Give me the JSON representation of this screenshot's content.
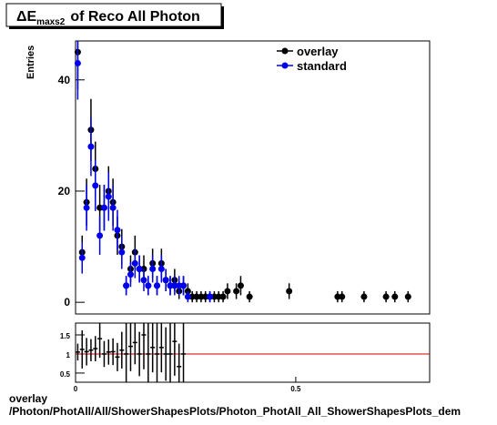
{
  "chart_data": [
    {
      "type": "scatter",
      "title": "ΔE",
      "title_subscript": "maxs2",
      "title_rest": "of Reco All Photon",
      "ylabel": "Entries",
      "xlim": [
        0,
        0.804
      ],
      "ylim": [
        -2.1,
        47
      ],
      "yticks": [
        0,
        20,
        40
      ],
      "legend": "upper right",
      "series": [
        {
          "name": "overlay",
          "color": "#000000",
          "x": [
            0.005,
            0.015,
            0.025,
            0.035,
            0.045,
            0.055,
            0.065,
            0.075,
            0.085,
            0.095,
            0.105,
            0.115,
            0.125,
            0.135,
            0.145,
            0.155,
            0.165,
            0.175,
            0.185,
            0.195,
            0.205,
            0.215,
            0.225,
            0.235,
            0.245,
            0.255,
            0.265,
            0.275,
            0.285,
            0.295,
            0.305,
            0.315,
            0.325,
            0.335,
            0.345,
            0.365,
            0.375,
            0.395,
            0.485,
            0.595,
            0.605,
            0.655,
            0.705,
            0.725,
            0.755
          ],
          "values": [
            45,
            9,
            18,
            31,
            24,
            17,
            17,
            20,
            18,
            12,
            10,
            3,
            6,
            9,
            6,
            6,
            3,
            7,
            3,
            7,
            4,
            3,
            4,
            2,
            3,
            2,
            1,
            1,
            1,
            1,
            1,
            1,
            1,
            1,
            2,
            2,
            3,
            1,
            2,
            1,
            1,
            1,
            1,
            1,
            1
          ]
        },
        {
          "name": "standard",
          "color": "#0000ee",
          "x": [
            0.005,
            0.015,
            0.025,
            0.035,
            0.045,
            0.055,
            0.065,
            0.075,
            0.085,
            0.095,
            0.105,
            0.115,
            0.125,
            0.135,
            0.145,
            0.155,
            0.165,
            0.175,
            0.185,
            0.195,
            0.205,
            0.215,
            0.225,
            0.235,
            0.245,
            0.255,
            0.305
          ],
          "values": [
            43,
            8,
            17,
            28,
            21,
            12,
            17,
            19,
            17,
            13,
            9,
            3,
            5,
            7,
            6,
            4,
            3,
            6,
            3,
            6,
            4,
            3,
            3,
            3,
            3,
            1,
            1
          ]
        }
      ]
    },
    {
      "type": "scatter",
      "xlim": [
        0,
        0.804
      ],
      "ylim": [
        0.26,
        1.81
      ],
      "yticks": [
        0.5,
        1,
        1.5
      ],
      "xticks": [
        0,
        0.5
      ],
      "reference_line": 1,
      "reference_color": "#cc0000",
      "series": [
        {
          "color": "#000000",
          "x": [
            0.005,
            0.015,
            0.025,
            0.035,
            0.045,
            0.055,
            0.065,
            0.075,
            0.085,
            0.095,
            0.105,
            0.115,
            0.125,
            0.135,
            0.145,
            0.155,
            0.165,
            0.175,
            0.185,
            0.195,
            0.205,
            0.215,
            0.225,
            0.235,
            0.245
          ],
          "values": [
            1.05,
            1.12,
            1.06,
            1.1,
            1.14,
            1.4,
            1,
            1.05,
            1.06,
            0.92,
            1.1,
            1,
            1.2,
            1.3,
            1,
            1.5,
            1,
            1.17,
            1,
            1.17,
            1,
            1,
            1.33,
            0.67,
            1
          ],
          "errors": [
            0.22,
            0.5,
            0.36,
            0.29,
            0.33,
            0.5,
            0.34,
            0.33,
            0.35,
            0.37,
            0.48,
            0.8,
            0.65,
            0.57,
            0.58,
            0.9,
            0.8,
            0.65,
            0.8,
            0.65,
            0.7,
            0.8,
            0.9,
            0.6,
            0.8
          ]
        }
      ]
    }
  ],
  "footer": {
    "line1": "overlay",
    "line2": "/Photon/PhotAll/All/ShowerShapesPlots/Photon_PhotAll_All_ShowerShapesPlots_dem"
  }
}
